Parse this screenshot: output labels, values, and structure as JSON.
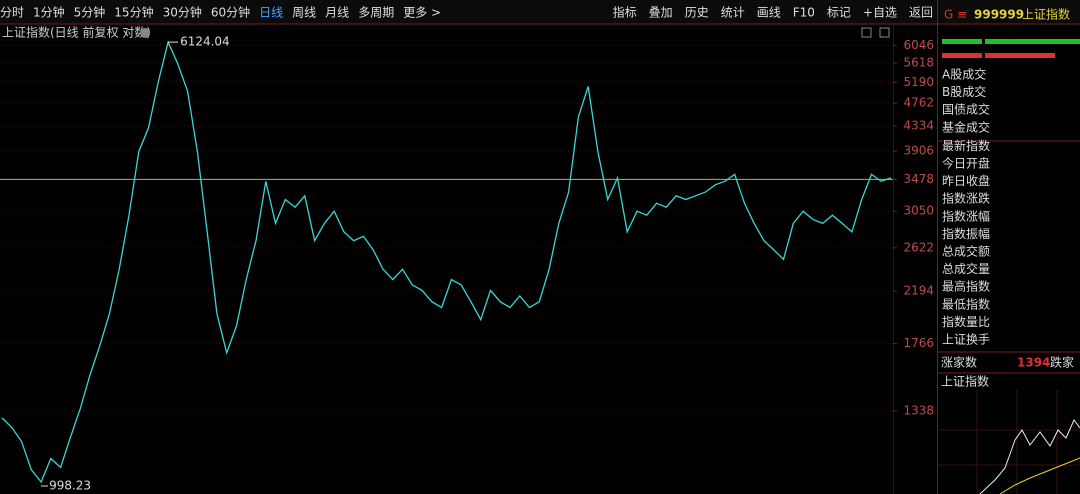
{
  "toolbar": {
    "left": [
      "分时",
      "1分钟",
      "5分钟",
      "15分钟",
      "30分钟",
      "60分钟",
      "日线",
      "周线",
      "月线",
      "多周期",
      "更多 >"
    ],
    "active": 6,
    "right": [
      "指标",
      "叠加",
      "历史",
      "统计",
      "画线",
      "F10",
      "标记",
      "+自选",
      "返回"
    ]
  },
  "chart_data": {
    "type": "line",
    "title": "上证指数(日线 前复权 对数)",
    "log_scale": true,
    "color": "#3ad6d6",
    "hline": 3478,
    "hline_color": "#b5b04a",
    "series": [
      {
        "name": "上证指数",
        "color": "#3ad6d6",
        "values": [
          1300,
          1250,
          1180,
          1050,
          998.23,
          1100,
          1060,
          1200,
          1350,
          1550,
          1750,
          2000,
          2400,
          3000,
          3900,
          4300,
          5200,
          6124.04,
          5600,
          5000,
          3900,
          2800,
          2000,
          1700,
          1900,
          2300,
          2700,
          3450,
          2900,
          3200,
          3100,
          3250,
          2700,
          2900,
          3050,
          2800,
          2700,
          2750,
          2600,
          2400,
          2300,
          2400,
          2250,
          2200,
          2100,
          2050,
          2300,
          2250,
          2100,
          1950,
          2200,
          2100,
          2050,
          2150,
          2050,
          2100,
          2400,
          2900,
          3300,
          4500,
          5100,
          3900,
          3200,
          3500,
          2800,
          3050,
          3000,
          3150,
          3100,
          3250,
          3200,
          3250,
          3300,
          3400,
          3450,
          3550,
          3150,
          2900,
          2700,
          2600,
          2500,
          2900,
          3050,
          2950,
          2900,
          3000,
          2900,
          2800,
          3200,
          3550,
          3450,
          3500
        ]
      }
    ],
    "ylim": [
      950,
      6600
    ],
    "yticks": [
      6046,
      5618,
      5190,
      4762,
      4334,
      3906,
      3478,
      3050,
      2622,
      2194,
      1766,
      1338
    ]
  },
  "panel": {
    "code": "999999",
    "name": "上证指数",
    "labels": [
      "A股成交",
      "B股成交",
      "国债成交",
      "基金成交",
      "最新指数",
      "今日开盘",
      "昨日收盘",
      "指数涨跌",
      "指数涨幅",
      "指数振幅",
      "总成交额",
      "总成交量",
      "最高指数",
      "最低指数",
      "指数量比",
      "上证换手"
    ],
    "up_label": "涨家数",
    "up_count": "1394",
    "down_label": "跌家",
    "mini_title": "上证指数"
  }
}
